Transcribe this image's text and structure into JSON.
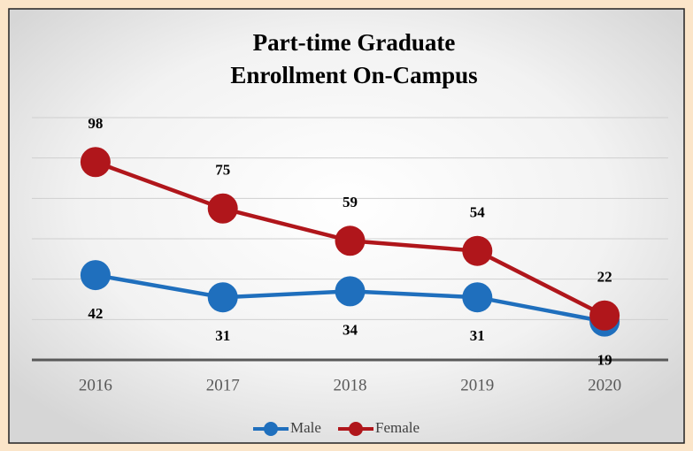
{
  "chart_data": {
    "type": "line",
    "title": [
      "Part-time Graduate",
      "Enrollment On-Campus"
    ],
    "categories": [
      "2016",
      "2017",
      "2018",
      "2019",
      "2020"
    ],
    "series": [
      {
        "name": "Male",
        "color": "#1f6fbd",
        "values": [
          42,
          31,
          34,
          31,
          19
        ]
      },
      {
        "name": "Female",
        "color": "#b0161b",
        "values": [
          98,
          75,
          59,
          54,
          22
        ]
      }
    ],
    "ylim": [
      0,
      120
    ],
    "yticks": [
      0,
      20,
      40,
      60,
      80,
      100,
      120
    ],
    "grid": true,
    "legend": "bottom"
  }
}
